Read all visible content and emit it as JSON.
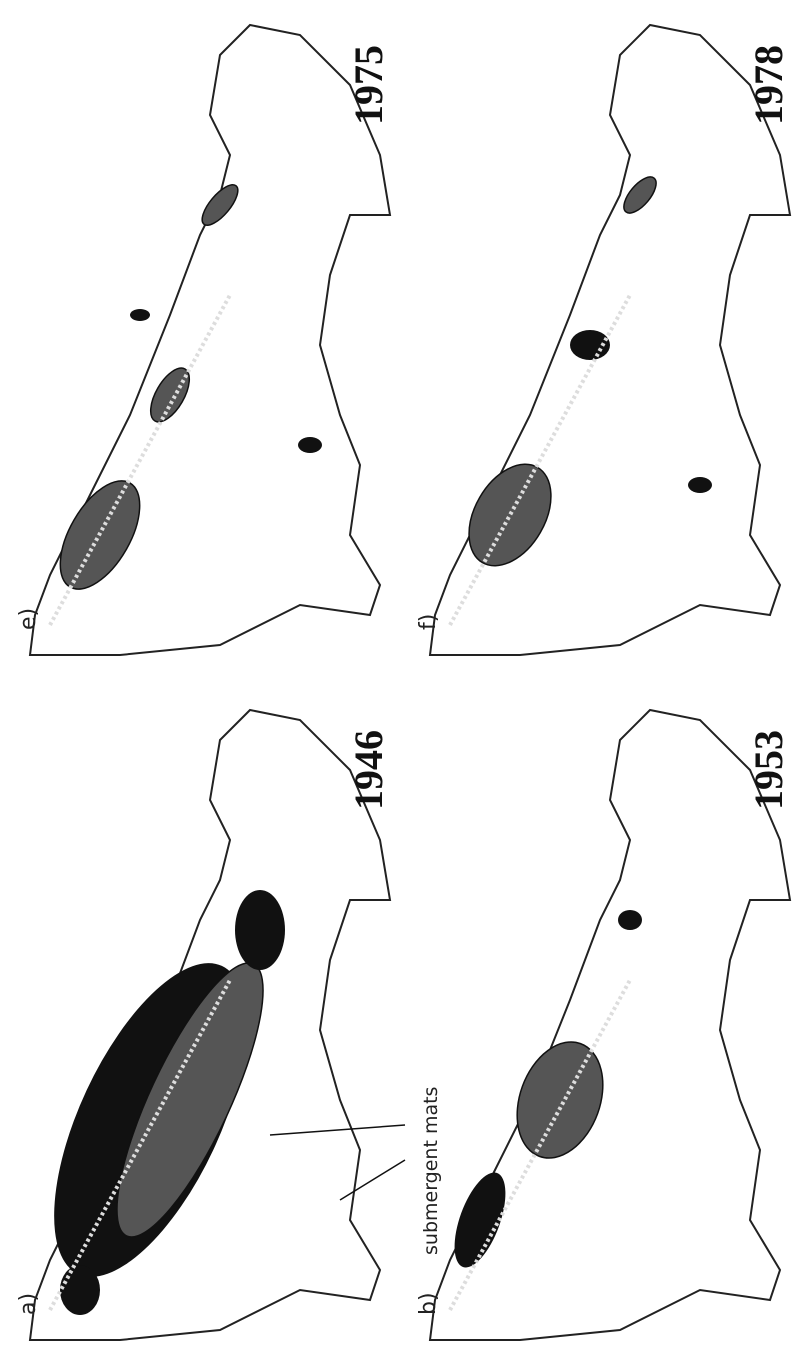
{
  "panels": [
    {
      "label": "e)",
      "year": "1975"
    },
    {
      "label": "f)",
      "year": "1978"
    },
    {
      "label": "a)",
      "year": "1946"
    },
    {
      "label": "b)",
      "year": "1953"
    }
  ],
  "annotation": "submergent mats"
}
